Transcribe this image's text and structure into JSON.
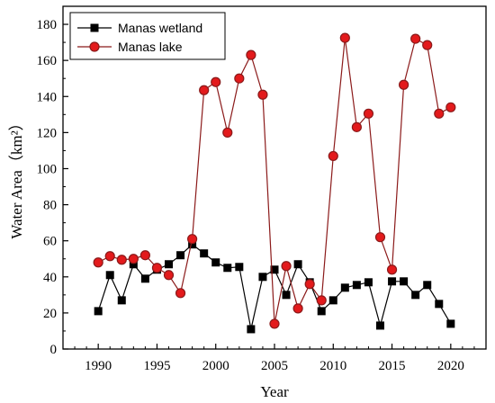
{
  "chart_data": {
    "type": "line",
    "x": [
      1990,
      1991,
      1992,
      1993,
      1994,
      1995,
      1996,
      1997,
      1998,
      1999,
      2000,
      2001,
      2002,
      2003,
      2004,
      2005,
      2006,
      2007,
      2008,
      2009,
      2010,
      2011,
      2012,
      2013,
      2014,
      2015,
      2016,
      2017,
      2018,
      2019,
      2020
    ],
    "series": [
      {
        "name": "Manas wetland",
        "color": "#000000",
        "marker": "square",
        "values": [
          21,
          41,
          27,
          47,
          39,
          44,
          47,
          52,
          58,
          53,
          48,
          45,
          45.5,
          11,
          40,
          44,
          30,
          47,
          37,
          21,
          27,
          34,
          35.5,
          37,
          13,
          37.5,
          37.5,
          30,
          35.5,
          25,
          14
        ]
      },
      {
        "name": "Manas lake",
        "color": "#8B1A1A",
        "marker_fill": "#e31a1c",
        "marker": "circle",
        "values": [
          48,
          51.5,
          49.5,
          50,
          52,
          45,
          41,
          31,
          61,
          143.5,
          148,
          120,
          150,
          163,
          141,
          14,
          46,
          22.5,
          36,
          27,
          107,
          172.5,
          123,
          130.5,
          62,
          44,
          146.5,
          172,
          168.5,
          130.5,
          134
        ]
      }
    ],
    "xlabel": "Year",
    "ylabel": "Water Area（km²）",
    "xlim": [
      1987,
      2023
    ],
    "ylim": [
      0,
      190
    ],
    "xticks": [
      "1990",
      "1995",
      "2000",
      "2005",
      "2010",
      "2015",
      "2020"
    ],
    "yticks": [
      "0",
      "20",
      "40",
      "60",
      "80",
      "100",
      "120",
      "140",
      "160",
      "180"
    ],
    "grid": false,
    "legend_position": "top-left"
  }
}
